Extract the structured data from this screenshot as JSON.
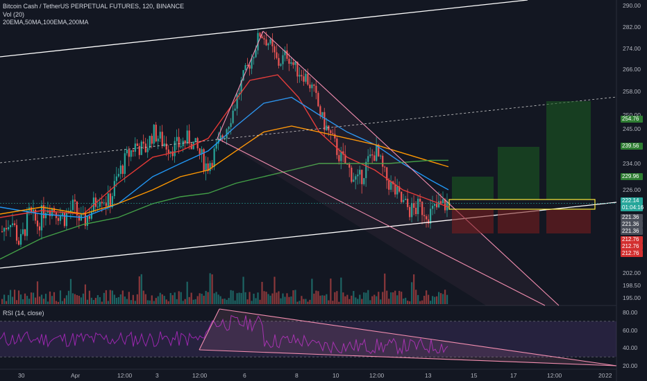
{
  "header": {
    "symbol": "Bitcoin Cash / TetherUS PERPETUAL FUTURES, 120, BINANCE",
    "vol": "Vol (20)",
    "mas": "20EMA,50MA,100EMA,200MA"
  },
  "rsi_header": "RSI (14, close)",
  "colors": {
    "background": "#131722",
    "up": "#26a69a",
    "down": "#ef5350",
    "ema20": "#e53935",
    "ma50": "#2196f3",
    "ema100": "#ff9800",
    "ma200": "#43a047",
    "channel": "#ffffff",
    "wedge": "#f48fb1",
    "box": "#ffeb3b",
    "target": "#1b5e20",
    "stop": "#7f1d1d",
    "rsi_line": "#9c27b0"
  },
  "chart_data": {
    "type": "candlestick",
    "price_axis": {
      "ticks": [
        {
          "v": 290,
          "label": "290.00"
        },
        {
          "v": 282,
          "label": "282.00"
        },
        {
          "v": 274,
          "label": "274.00"
        },
        {
          "v": 266,
          "label": "266.00"
        },
        {
          "v": 258,
          "label": "258.00"
        },
        {
          "v": 250,
          "label": "250.00"
        },
        {
          "v": 245,
          "label": "245.00"
        },
        {
          "v": 234,
          "label": "234.00"
        },
        {
          "v": 226,
          "label": "226.00"
        },
        {
          "v": 202,
          "label": "202.00"
        },
        {
          "v": 198.5,
          "label": "198.50"
        },
        {
          "v": 195,
          "label": "195.00"
        }
      ]
    },
    "time_axis": [
      "30",
      "Apr",
      "12:00",
      "3",
      "12:00",
      "6",
      "8",
      "10",
      "12:00",
      "13",
      "15",
      "17",
      "12:00",
      "20",
      "22"
    ],
    "price_tags": [
      {
        "label": "254.76",
        "color": "#2e7d32"
      },
      {
        "label": "239.56",
        "color": "#2e7d32"
      },
      {
        "label": "229.96",
        "color": "#2e7d32"
      },
      {
        "label": "222.14",
        "color": "#26a69a"
      },
      {
        "label": "01:04:16",
        "color": "#26a69a"
      },
      {
        "label": "221.36",
        "color": "#4a4e59"
      },
      {
        "label": "221.36",
        "color": "#4a4e59"
      },
      {
        "label": "221.36",
        "color": "#4a4e59"
      },
      {
        "label": "212.76",
        "color": "#d32f2f"
      },
      {
        "label": "212.76",
        "color": "#d32f2f"
      },
      {
        "label": "212.76",
        "color": "#d32f2f"
      }
    ],
    "last_price": 222.14,
    "candle_path": [
      214,
      218,
      210,
      219,
      216,
      222,
      220,
      218,
      221,
      216,
      220,
      225,
      222,
      230,
      236,
      240,
      238,
      244,
      241,
      239,
      240,
      242,
      238,
      233,
      238,
      244,
      252,
      262,
      270,
      280,
      276,
      268,
      272,
      266,
      264,
      258,
      248,
      242,
      236,
      232,
      228,
      234,
      238,
      230,
      226,
      222,
      220,
      221,
      219,
      221,
      222
    ],
    "rsi_axis": {
      "ticks": [
        {
          "v": 80,
          "label": "80.00"
        },
        {
          "v": 60,
          "label": "60.00"
        },
        {
          "v": 40,
          "label": "40.00"
        },
        {
          "v": 20,
          "label": "20.00"
        }
      ]
    }
  }
}
